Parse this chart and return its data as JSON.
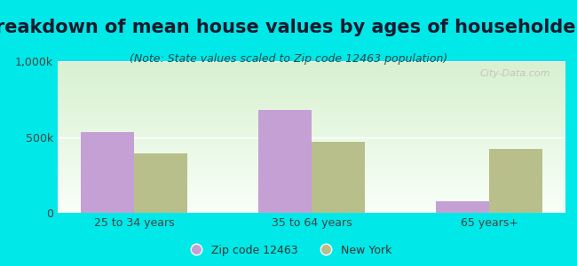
{
  "title": "Breakdown of mean house values by ages of householders",
  "subtitle": "(Note: State values scaled to Zip code 12463 population)",
  "categories": [
    "25 to 34 years",
    "35 to 64 years",
    "65 years+"
  ],
  "zip_values": [
    530000,
    680000,
    75000
  ],
  "ny_values": [
    390000,
    470000,
    420000
  ],
  "zip_color": "#c4a0d4",
  "ny_color": "#b8bf8a",
  "background_color": "#00e8e8",
  "plot_bg_top": "#d8f0d0",
  "plot_bg_bottom": "#f8fff8",
  "ylim": [
    0,
    1000000
  ],
  "yticks": [
    0,
    500000,
    1000000
  ],
  "ytick_labels": [
    "0",
    "500k",
    "1,000k"
  ],
  "title_fontsize": 15,
  "subtitle_fontsize": 9,
  "tick_fontsize": 9,
  "legend_label_zip": "Zip code 12463",
  "legend_label_ny": "New York",
  "bar_width": 0.3,
  "watermark": "City-Data.com"
}
